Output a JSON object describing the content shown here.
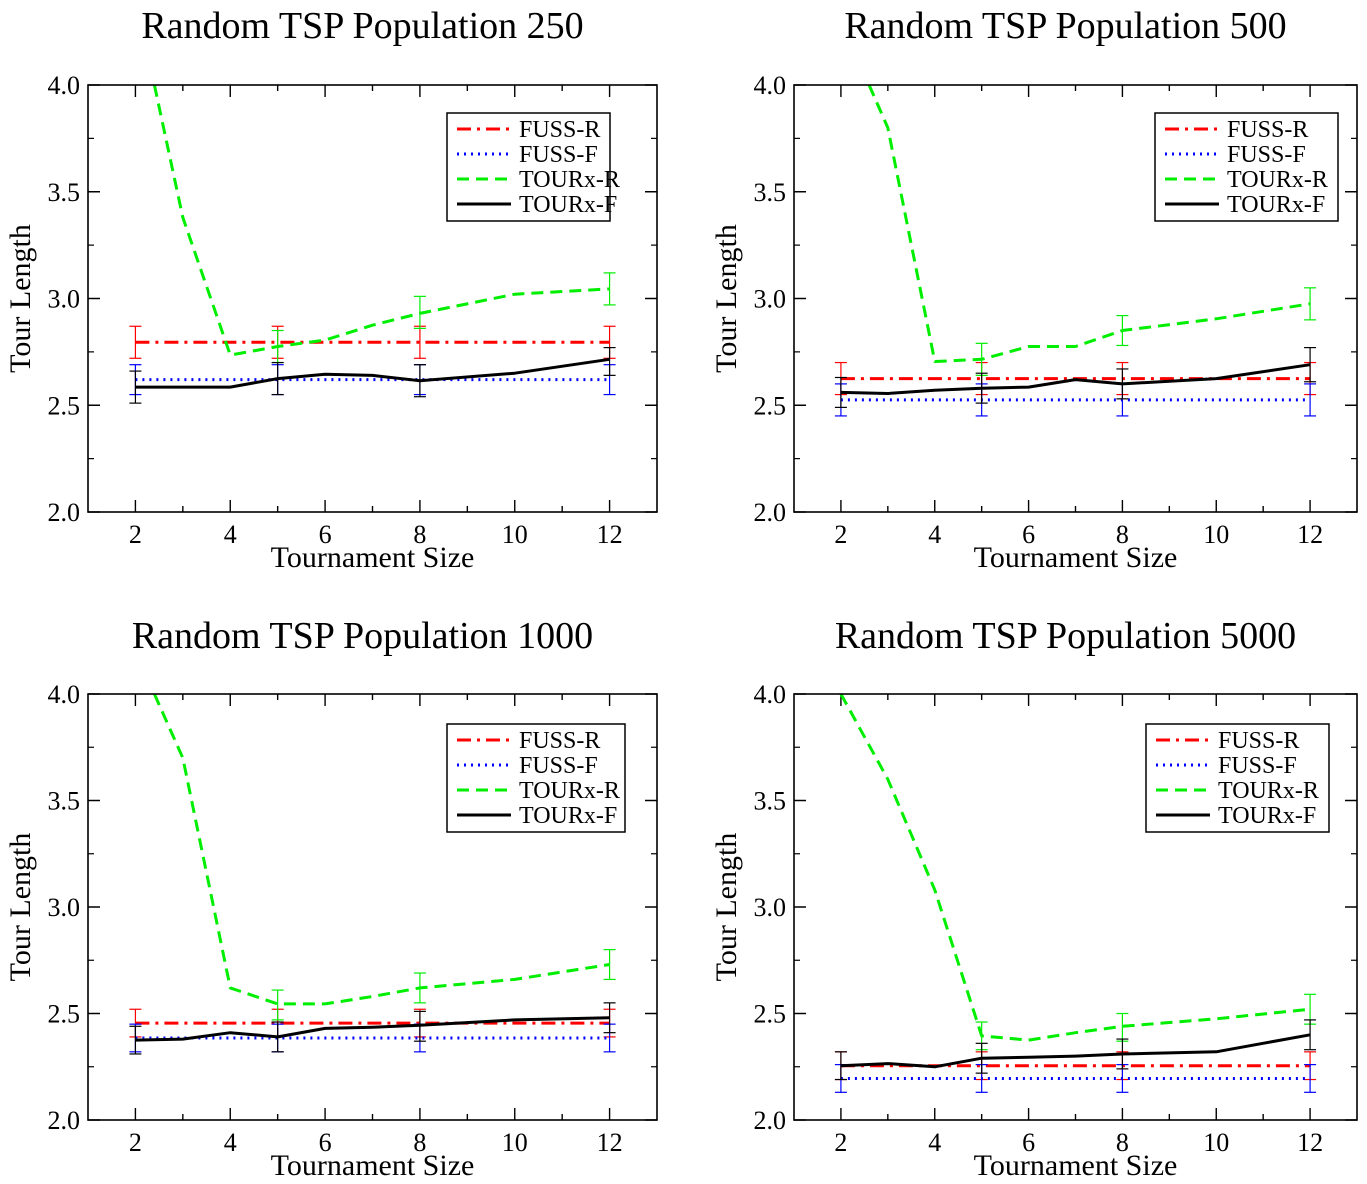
{
  "chart_data": [
    {
      "type": "line",
      "title": "Random TSP  Population 250",
      "xlabel": "Tournament Size",
      "ylabel": "Tour Length",
      "xlim": [
        1,
        13
      ],
      "ylim": [
        2.0,
        4.0
      ],
      "xticks": [
        "2",
        "4",
        "6",
        "8",
        "10",
        "12"
      ],
      "yticks": [
        "2.0",
        "2.5",
        "3.0",
        "3.5",
        "4.0"
      ],
      "legend_position": "top-right",
      "series": [
        {
          "name": "FUSS-R",
          "color": "#ff0000",
          "style": "dashdot",
          "points": [
            [
              2,
              2.795
            ],
            [
              12,
              2.795
            ]
          ],
          "errorbars": [
            [
              2,
              2.72,
              2.87
            ],
            [
              5,
              2.72,
              2.87
            ],
            [
              8,
              2.72,
              2.87
            ],
            [
              12,
              2.72,
              2.87
            ]
          ]
        },
        {
          "name": "FUSS-F",
          "color": "#0000ff",
          "style": "dotted",
          "points": [
            [
              2,
              2.62
            ],
            [
              12,
              2.62
            ]
          ],
          "errorbars": [
            [
              2,
              2.55,
              2.69
            ],
            [
              5,
              2.55,
              2.69
            ],
            [
              8,
              2.55,
              2.69
            ],
            [
              12,
              2.55,
              2.69
            ]
          ]
        },
        {
          "name": "TOURx-R",
          "color": "#00ee00",
          "style": "dashed",
          "points": [
            [
              2.4,
              4.0
            ],
            [
              3,
              3.38
            ],
            [
              4,
              2.735
            ],
            [
              5,
              2.775
            ],
            [
              6,
              2.805
            ],
            [
              7,
              2.875
            ],
            [
              8,
              2.93
            ],
            [
              10,
              3.02
            ],
            [
              12,
              3.045
            ]
          ],
          "errorbars": [
            [
              5,
              2.7,
              2.85
            ],
            [
              8,
              2.86,
              3.01
            ],
            [
              12,
              2.97,
              3.12
            ]
          ]
        },
        {
          "name": "TOURx-F",
          "color": "#000000",
          "style": "solid",
          "points": [
            [
              2,
              2.585
            ],
            [
              4,
              2.585
            ],
            [
              5,
              2.625
            ],
            [
              6,
              2.645
            ],
            [
              7,
              2.64
            ],
            [
              8,
              2.615
            ],
            [
              10,
              2.65
            ],
            [
              12,
              2.715
            ]
          ],
          "errorbars": [
            [
              2,
              2.51,
              2.66
            ],
            [
              5,
              2.55,
              2.7
            ],
            [
              8,
              2.54,
              2.69
            ],
            [
              12,
              2.64,
              2.77
            ]
          ]
        }
      ]
    },
    {
      "type": "line",
      "title": "Random TSP  Population 500",
      "xlabel": "Tournament Size",
      "ylabel": "Tour Length",
      "xlim": [
        1,
        13
      ],
      "ylim": [
        2.0,
        4.0
      ],
      "xticks": [
        "2",
        "4",
        "6",
        "8",
        "10",
        "12"
      ],
      "yticks": [
        "2.0",
        "2.5",
        "3.0",
        "3.5",
        "4.0"
      ],
      "legend_position": "top-right",
      "series": [
        {
          "name": "FUSS-R",
          "color": "#ff0000",
          "style": "dashdot",
          "points": [
            [
              2,
              2.625
            ],
            [
              12,
              2.625
            ]
          ],
          "errorbars": [
            [
              2,
              2.55,
              2.7
            ],
            [
              5,
              2.55,
              2.7
            ],
            [
              8,
              2.55,
              2.7
            ],
            [
              12,
              2.55,
              2.7
            ]
          ]
        },
        {
          "name": "FUSS-F",
          "color": "#0000ff",
          "style": "dotted",
          "points": [
            [
              2,
              2.525
            ],
            [
              12,
              2.525
            ]
          ],
          "errorbars": [
            [
              2,
              2.45,
              2.6
            ],
            [
              5,
              2.45,
              2.6
            ],
            [
              8,
              2.45,
              2.6
            ],
            [
              12,
              2.45,
              2.6
            ]
          ]
        },
        {
          "name": "TOURx-R",
          "color": "#00ee00",
          "style": "dashed",
          "points": [
            [
              2.6,
              4.0
            ],
            [
              3,
              3.8
            ],
            [
              4,
              2.705
            ],
            [
              5,
              2.715
            ],
            [
              6,
              2.775
            ],
            [
              7,
              2.775
            ],
            [
              8,
              2.85
            ],
            [
              10,
              2.905
            ],
            [
              12,
              2.975
            ]
          ],
          "errorbars": [
            [
              5,
              2.64,
              2.79
            ],
            [
              8,
              2.78,
              2.92
            ],
            [
              12,
              2.9,
              3.05
            ]
          ]
        },
        {
          "name": "TOURx-F",
          "color": "#000000",
          "style": "solid",
          "points": [
            [
              2,
              2.56
            ],
            [
              3,
              2.555
            ],
            [
              4,
              2.57
            ],
            [
              5,
              2.58
            ],
            [
              6,
              2.585
            ],
            [
              7,
              2.62
            ],
            [
              8,
              2.6
            ],
            [
              10,
              2.625
            ],
            [
              12,
              2.69
            ]
          ],
          "errorbars": [
            [
              2,
              2.49,
              2.63
            ],
            [
              5,
              2.51,
              2.65
            ],
            [
              8,
              2.53,
              2.67
            ],
            [
              12,
              2.61,
              2.77
            ]
          ]
        }
      ]
    },
    {
      "type": "line",
      "title": "Random TSP  Population 1000",
      "xlabel": "Tournament Size",
      "ylabel": "Tour Length",
      "xlim": [
        1,
        13
      ],
      "ylim": [
        2.0,
        4.0
      ],
      "xticks": [
        "2",
        "4",
        "6",
        "8",
        "10",
        "12"
      ],
      "yticks": [
        "2.0",
        "2.5",
        "3.0",
        "3.5",
        "4.0"
      ],
      "legend_position": "top-right",
      "series": [
        {
          "name": "FUSS-R",
          "color": "#ff0000",
          "style": "dashdot",
          "points": [
            [
              2,
              2.455
            ],
            [
              12,
              2.455
            ]
          ],
          "errorbars": [
            [
              2,
              2.39,
              2.52
            ],
            [
              5,
              2.39,
              2.52
            ],
            [
              8,
              2.39,
              2.52
            ],
            [
              12,
              2.39,
              2.52
            ]
          ]
        },
        {
          "name": "FUSS-F",
          "color": "#0000ff",
          "style": "dotted",
          "points": [
            [
              2,
              2.385
            ],
            [
              12,
              2.385
            ]
          ],
          "errorbars": [
            [
              2,
              2.32,
              2.45
            ],
            [
              5,
              2.32,
              2.45
            ],
            [
              8,
              2.32,
              2.45
            ],
            [
              12,
              2.32,
              2.45
            ]
          ]
        },
        {
          "name": "TOURx-R",
          "color": "#00ee00",
          "style": "dashed",
          "points": [
            [
              2.4,
              4.0
            ],
            [
              3,
              3.7
            ],
            [
              4,
              2.62
            ],
            [
              5,
              2.545
            ],
            [
              6,
              2.545
            ],
            [
              7,
              2.58
            ],
            [
              8,
              2.62
            ],
            [
              10,
              2.66
            ],
            [
              12,
              2.73
            ]
          ],
          "errorbars": [
            [
              5,
              2.47,
              2.61
            ],
            [
              8,
              2.55,
              2.69
            ],
            [
              12,
              2.66,
              2.8
            ]
          ]
        },
        {
          "name": "TOURx-F",
          "color": "#000000",
          "style": "solid",
          "points": [
            [
              2,
              2.375
            ],
            [
              3,
              2.38
            ],
            [
              4,
              2.41
            ],
            [
              5,
              2.39
            ],
            [
              6,
              2.43
            ],
            [
              7,
              2.435
            ],
            [
              8,
              2.445
            ],
            [
              10,
              2.47
            ],
            [
              12,
              2.48
            ]
          ],
          "errorbars": [
            [
              2,
              2.31,
              2.44
            ],
            [
              5,
              2.32,
              2.46
            ],
            [
              8,
              2.37,
              2.51
            ],
            [
              12,
              2.41,
              2.55
            ]
          ]
        }
      ]
    },
    {
      "type": "line",
      "title": "Random TSP  Population 5000",
      "xlabel": "Tournament Size",
      "ylabel": "Tour Length",
      "xlim": [
        1,
        13
      ],
      "ylim": [
        2.0,
        4.0
      ],
      "xticks": [
        "2",
        "4",
        "6",
        "8",
        "10",
        "12"
      ],
      "yticks": [
        "2.0",
        "2.5",
        "3.0",
        "3.5",
        "4.0"
      ],
      "legend_position": "top-right",
      "series": [
        {
          "name": "FUSS-R",
          "color": "#ff0000",
          "style": "dashdot",
          "points": [
            [
              2,
              2.255
            ],
            [
              12,
              2.255
            ]
          ],
          "errorbars": [
            [
              2,
              2.19,
              2.32
            ],
            [
              5,
              2.19,
              2.32
            ],
            [
              8,
              2.19,
              2.32
            ],
            [
              12,
              2.19,
              2.32
            ]
          ]
        },
        {
          "name": "FUSS-F",
          "color": "#0000ff",
          "style": "dotted",
          "points": [
            [
              2,
              2.195
            ],
            [
              12,
              2.195
            ]
          ],
          "errorbars": [
            [
              2,
              2.13,
              2.26
            ],
            [
              5,
              2.13,
              2.26
            ],
            [
              8,
              2.13,
              2.26
            ],
            [
              12,
              2.13,
              2.26
            ]
          ]
        },
        {
          "name": "TOURx-R",
          "color": "#00ee00",
          "style": "dashed",
          "points": [
            [
              2,
              4.0
            ],
            [
              3,
              3.6
            ],
            [
              4,
              3.08
            ],
            [
              5,
              2.395
            ],
            [
              6,
              2.375
            ],
            [
              7,
              2.41
            ],
            [
              8,
              2.44
            ],
            [
              10,
              2.475
            ],
            [
              12,
              2.52
            ]
          ],
          "errorbars": [
            [
              5,
              2.33,
              2.46
            ],
            [
              8,
              2.37,
              2.5
            ],
            [
              12,
              2.45,
              2.59
            ]
          ]
        },
        {
          "name": "TOURx-F",
          "color": "#000000",
          "style": "solid",
          "points": [
            [
              2,
              2.255
            ],
            [
              3,
              2.265
            ],
            [
              4,
              2.25
            ],
            [
              5,
              2.29
            ],
            [
              6,
              2.295
            ],
            [
              7,
              2.3
            ],
            [
              8,
              2.31
            ],
            [
              10,
              2.32
            ],
            [
              12,
              2.4
            ]
          ],
          "errorbars": [
            [
              2,
              2.19,
              2.32
            ],
            [
              5,
              2.22,
              2.36
            ],
            [
              8,
              2.24,
              2.38
            ],
            [
              12,
              2.33,
              2.47
            ]
          ]
        }
      ]
    }
  ]
}
